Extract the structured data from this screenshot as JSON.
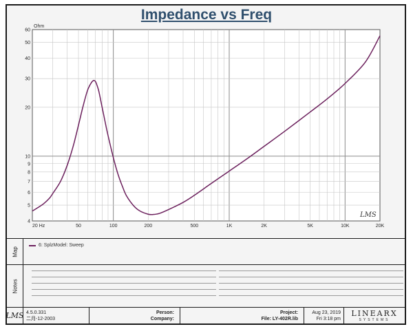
{
  "page": {
    "title": "Impedance vs Freq"
  },
  "chart_data": {
    "type": "line",
    "title": "Impedance vs Freq",
    "ylabel": "Ohm",
    "xlabel": "",
    "x_scale": "log",
    "y_scale": "log",
    "xlim": [
      20,
      20000
    ],
    "ylim": [
      4,
      60
    ],
    "grid": true,
    "x_ticks": [
      {
        "value": 20,
        "label": "20 Hz"
      },
      {
        "value": 50,
        "label": "50"
      },
      {
        "value": 100,
        "label": "100"
      },
      {
        "value": 200,
        "label": "200"
      },
      {
        "value": 500,
        "label": "500"
      },
      {
        "value": 1000,
        "label": "1K"
      },
      {
        "value": 2000,
        "label": "2K"
      },
      {
        "value": 5000,
        "label": "5K"
      },
      {
        "value": 10000,
        "label": "10K"
      },
      {
        "value": 20000,
        "label": "20K"
      }
    ],
    "y_ticks": [
      {
        "value": 4,
        "label": "4"
      },
      {
        "value": 5,
        "label": "5"
      },
      {
        "value": 6,
        "label": "6"
      },
      {
        "value": 7,
        "label": "7"
      },
      {
        "value": 8,
        "label": "8"
      },
      {
        "value": 9,
        "label": "9"
      },
      {
        "value": 10,
        "label": "10"
      },
      {
        "value": 20,
        "label": "20"
      },
      {
        "value": 30,
        "label": "30"
      },
      {
        "value": 40,
        "label": "40"
      },
      {
        "value": 50,
        "label": "50"
      },
      {
        "value": 60,
        "label": "60"
      }
    ],
    "series": [
      {
        "name": "6: SplzModel: Sweep",
        "color": "#6b1f5c",
        "x": [
          20,
          22,
          25,
          28,
          30,
          35,
          40,
          45,
          50,
          55,
          60,
          65,
          68,
          70,
          72,
          75,
          80,
          85,
          90,
          100,
          110,
          120,
          130,
          150,
          170,
          200,
          220,
          250,
          300,
          400,
          500,
          700,
          1000,
          1500,
          2000,
          3000,
          5000,
          7000,
          10000,
          15000,
          20000
        ],
        "y": [
          4.6,
          4.8,
          5.1,
          5.5,
          5.9,
          7.0,
          8.8,
          11.5,
          15.5,
          20.5,
          25.5,
          28.5,
          29.2,
          28.8,
          27.5,
          25.0,
          20.0,
          16.2,
          13.4,
          9.8,
          7.7,
          6.5,
          5.7,
          4.95,
          4.6,
          4.4,
          4.38,
          4.45,
          4.7,
          5.2,
          5.75,
          6.8,
          8.1,
          9.9,
          11.5,
          14.2,
          18.7,
          22.5,
          28.0,
          38.0,
          55.0
        ]
      }
    ]
  },
  "watermark": "LMS",
  "map": {
    "label": "Map",
    "entry": "6: SplzModel: Sweep"
  },
  "notes": {
    "label": "Notes"
  },
  "footer": {
    "logo": "LMS",
    "version": "4.5.0.331",
    "version_date": "二月-12-2003",
    "person_label": "Person:",
    "company_label": "Company:",
    "project_label": "Project:",
    "file_label": "File: LY-402R.lib",
    "date": "Aug 23, 2019",
    "time": "Fri  3:18 pm",
    "brand_name": "LINEARX",
    "brand_sub": "SYSTEMS"
  }
}
